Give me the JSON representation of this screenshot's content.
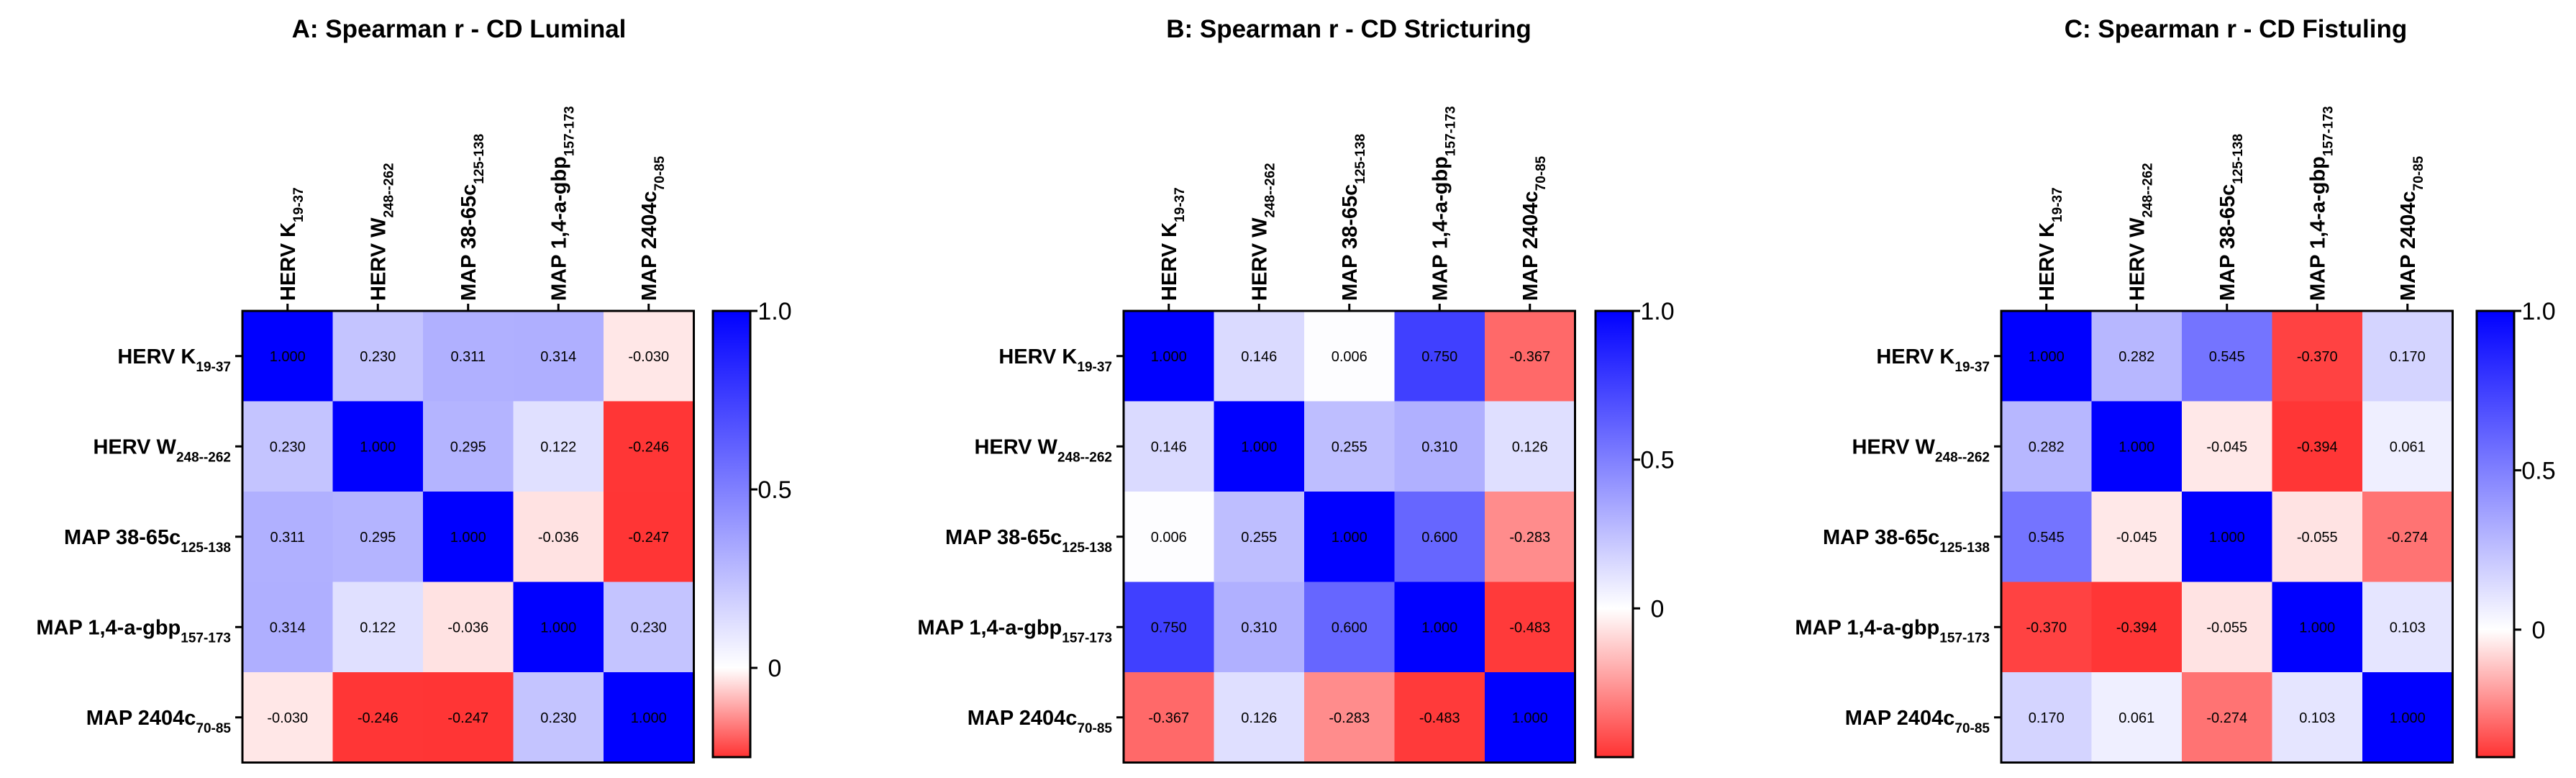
{
  "chart_data": [
    {
      "type": "heatmap",
      "title": "A: Spearman r - CD Luminal",
      "rows": [
        {
          "base": "HERV K",
          "sub": "19-37"
        },
        {
          "base": "HERV W",
          "sub": "248--262"
        },
        {
          "base": "MAP 38-65c",
          "sub": "125-138"
        },
        {
          "base": "MAP 1,4-a-gbp",
          "sub": "157-173"
        },
        {
          "base": "MAP 2404c",
          "sub": "70-85"
        }
      ],
      "columns": [
        {
          "base": "HERV K",
          "sub": "19-37"
        },
        {
          "base": "HERV W",
          "sub": "248--262"
        },
        {
          "base": "MAP 38-65c",
          "sub": "125-138"
        },
        {
          "base": "MAP 1,4-a-gbp",
          "sub": "157-173"
        },
        {
          "base": "MAP 2404c",
          "sub": "70-85"
        }
      ],
      "values": [
        [
          1.0,
          0.23,
          0.311,
          0.314,
          -0.03
        ],
        [
          0.23,
          1.0,
          0.295,
          0.122,
          -0.246
        ],
        [
          0.311,
          0.295,
          1.0,
          -0.036,
          -0.247
        ],
        [
          0.314,
          0.122,
          -0.036,
          1.0,
          0.23
        ],
        [
          -0.03,
          -0.246,
          -0.247,
          0.23,
          1.0
        ]
      ],
      "value_labels": [
        [
          "1.000",
          "0.230",
          "0.311",
          "0.314",
          "-0.030"
        ],
        [
          "0.230",
          "1.000",
          "0.295",
          "0.122",
          "-0.246"
        ],
        [
          "0.311",
          "0.295",
          "1.000",
          "-0.036",
          "-0.247"
        ],
        [
          "0.314",
          "0.122",
          "-0.036",
          "1.000",
          "0.230"
        ],
        [
          "-0.030",
          "-0.246",
          "-0.247",
          "0.230",
          "1.000"
        ]
      ],
      "color_scale": {
        "min": -0.25,
        "zero": 0,
        "max": 1.0,
        "low_color": "#ff3333",
        "mid_color": "#ffffff",
        "high_color": "#0000ff"
      },
      "colorbar_ticks": [
        {
          "value": 1.0,
          "label": "1.0"
        },
        {
          "value": 0.5,
          "label": "0.5"
        },
        {
          "value": 0,
          "label": "0"
        }
      ]
    },
    {
      "type": "heatmap",
      "title": "B: Spearman r - CD Stricturing",
      "rows": [
        {
          "base": "HERV K",
          "sub": "19-37"
        },
        {
          "base": "HERV W",
          "sub": "248--262"
        },
        {
          "base": "MAP 38-65c",
          "sub": "125-138"
        },
        {
          "base": "MAP 1,4-a-gbp",
          "sub": "157-173"
        },
        {
          "base": "MAP 2404c",
          "sub": "70-85"
        }
      ],
      "columns": [
        {
          "base": "HERV K",
          "sub": "19-37"
        },
        {
          "base": "HERV W",
          "sub": "248--262"
        },
        {
          "base": "MAP 38-65c",
          "sub": "125-138"
        },
        {
          "base": "MAP 1,4-a-gbp",
          "sub": "157-173"
        },
        {
          "base": "MAP 2404c",
          "sub": "70-85"
        }
      ],
      "values": [
        [
          1.0,
          0.146,
          0.006,
          0.75,
          -0.367
        ],
        [
          0.146,
          1.0,
          0.255,
          0.31,
          0.126
        ],
        [
          0.006,
          0.255,
          1.0,
          0.6,
          -0.283
        ],
        [
          0.75,
          0.31,
          0.6,
          1.0,
          -0.483
        ],
        [
          -0.367,
          0.126,
          -0.283,
          -0.483,
          1.0
        ]
      ],
      "value_labels": [
        [
          "1.000",
          "0.146",
          "0.006",
          "0.750",
          "-0.367"
        ],
        [
          "0.146",
          "1.000",
          "0.255",
          "0.310",
          "0.126"
        ],
        [
          "0.006",
          "0.255",
          "1.000",
          "0.600",
          "-0.283"
        ],
        [
          "0.750",
          "0.310",
          "0.600",
          "1.000",
          "-0.483"
        ],
        [
          "-0.367",
          "0.126",
          "-0.283",
          "-0.483",
          "1.000"
        ]
      ],
      "color_scale": {
        "min": -0.5,
        "zero": 0,
        "max": 1.0,
        "low_color": "#ff3333",
        "mid_color": "#ffffff",
        "high_color": "#0000ff"
      },
      "colorbar_ticks": [
        {
          "value": 1.0,
          "label": "1.0"
        },
        {
          "value": 0.5,
          "label": "0.5"
        },
        {
          "value": 0,
          "label": "0"
        }
      ]
    },
    {
      "type": "heatmap",
      "title": "C: Spearman r - CD Fistuling",
      "rows": [
        {
          "base": "HERV K",
          "sub": "19-37"
        },
        {
          "base": "HERV W",
          "sub": "248--262"
        },
        {
          "base": "MAP 38-65c",
          "sub": "125-138"
        },
        {
          "base": "MAP 1,4-a-gbp",
          "sub": "157-173"
        },
        {
          "base": "MAP 2404c",
          "sub": "70-85"
        }
      ],
      "columns": [
        {
          "base": "HERV K",
          "sub": "19-37"
        },
        {
          "base": "HERV W",
          "sub": "248--262"
        },
        {
          "base": "MAP 38-65c",
          "sub": "125-138"
        },
        {
          "base": "MAP 1,4-a-gbp",
          "sub": "157-173"
        },
        {
          "base": "MAP 2404c",
          "sub": "70-85"
        }
      ],
      "values": [
        [
          1.0,
          0.282,
          0.545,
          -0.37,
          0.17
        ],
        [
          0.282,
          1.0,
          -0.045,
          -0.394,
          0.061
        ],
        [
          0.545,
          -0.045,
          1.0,
          -0.055,
          -0.274
        ],
        [
          -0.37,
          -0.394,
          -0.055,
          1.0,
          0.103
        ],
        [
          0.17,
          0.061,
          -0.274,
          0.103,
          1.0
        ]
      ],
      "value_labels": [
        [
          "1.000",
          "0.282",
          "0.545",
          "-0.370",
          "0.170"
        ],
        [
          "0.282",
          "1.000",
          "-0.045",
          "-0.394",
          "0.061"
        ],
        [
          "0.545",
          "-0.045",
          "1.000",
          "-0.055",
          "-0.274"
        ],
        [
          "-0.370",
          "-0.394",
          "-0.055",
          "1.000",
          "0.103"
        ],
        [
          "0.170",
          "0.061",
          "-0.274",
          "0.103",
          "1.000"
        ]
      ],
      "color_scale": {
        "min": -0.4,
        "zero": 0,
        "max": 1.0,
        "low_color": "#ff3333",
        "mid_color": "#ffffff",
        "high_color": "#0000ff"
      },
      "colorbar_ticks": [
        {
          "value": 1.0,
          "label": "1.0"
        },
        {
          "value": 0.5,
          "label": "0.5"
        },
        {
          "value": 0,
          "label": "0"
        }
      ]
    }
  ]
}
